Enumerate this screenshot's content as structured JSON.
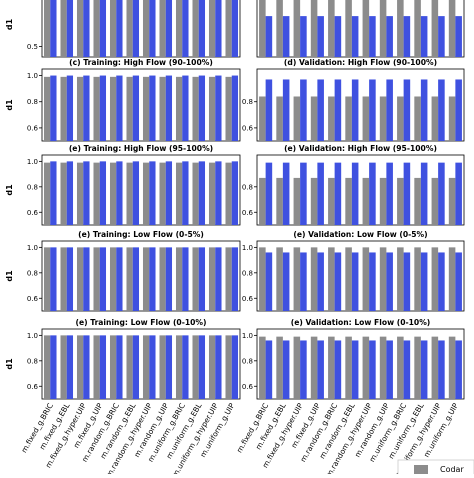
{
  "chart_data": {
    "type": "bar",
    "legend": {
      "entries": [
        "Codar"
      ],
      "placement": "bottom-right",
      "colors": {
        "Codar": "#8c8c8c"
      }
    },
    "series_colors": [
      "#8c8c8c",
      "#3f51e0"
    ],
    "categories": [
      "m.fixed_g.BRIC",
      "m.fixed_g.EBL",
      "m.fixed_g.hyper.UIP",
      "m.fixed_g.UIP",
      "m.random_g.BRIC",
      "m.random_g.EBL",
      "m.random_g.hyper.UIP",
      "m.random_g.UIP",
      "m.uniform_g.BRIC",
      "m.uniform_g.EBL",
      "m.uniform_g.hyper.UIP",
      "m.uniform_g.UIP"
    ],
    "panels": [
      {
        "title": "",
        "ylabel": "d1",
        "yticks": [
          "0.5"
        ],
        "ylim": [
          0.4,
          1.02
        ],
        "grey": [
          1,
          1,
          1,
          1,
          1,
          1,
          1,
          1,
          1,
          1,
          1,
          1
        ],
        "blue": [
          1,
          1,
          1,
          1,
          1,
          1,
          1,
          1,
          1,
          1,
          1,
          1
        ]
      },
      {
        "title": "",
        "ylabel": "",
        "yticks": [],
        "ylim": [
          0.4,
          1.02
        ],
        "grey": [
          0.98,
          0.98,
          0.98,
          0.98,
          0.98,
          0.98,
          0.98,
          0.98,
          0.98,
          0.98,
          0.98,
          0.98
        ],
        "blue": [
          0.79,
          0.79,
          0.79,
          0.79,
          0.79,
          0.79,
          0.79,
          0.79,
          0.79,
          0.79,
          0.79,
          0.79
        ]
      },
      {
        "title": "(c) Training: High Flow (90-100%)",
        "ylabel": "d1",
        "yticks": [
          "1.0",
          "0.8",
          "0.6"
        ],
        "ylim": [
          0.5,
          1.05
        ],
        "grey": [
          0.99,
          0.99,
          0.99,
          0.99,
          0.99,
          0.99,
          0.99,
          0.99,
          0.99,
          0.99,
          0.99,
          0.99
        ],
        "blue": [
          1,
          1,
          1,
          1,
          1,
          1,
          1,
          1,
          1,
          1,
          1,
          1
        ]
      },
      {
        "title": "(d) Validation: High Flow (90-100%)",
        "ylabel": "",
        "yticks": [
          "0.8",
          "0.6"
        ],
        "ylim": [
          0.5,
          1.05
        ],
        "grey": [
          0.84,
          0.84,
          0.84,
          0.84,
          0.84,
          0.84,
          0.84,
          0.84,
          0.84,
          0.84,
          0.84,
          0.84
        ],
        "blue": [
          0.97,
          0.97,
          0.97,
          0.97,
          0.97,
          0.97,
          0.97,
          0.97,
          0.97,
          0.97,
          0.97,
          0.97
        ]
      },
      {
        "title": "(e) Training: High Flow (95-100%)",
        "ylabel": "d1",
        "yticks": [
          "1.0",
          "0.8",
          "0.6"
        ],
        "ylim": [
          0.5,
          1.05
        ],
        "grey": [
          0.99,
          0.99,
          0.99,
          0.99,
          0.99,
          0.99,
          0.99,
          0.99,
          0.99,
          0.99,
          0.99,
          0.99
        ],
        "blue": [
          1,
          1,
          1,
          1,
          1,
          1,
          1,
          1,
          1,
          1,
          1,
          1
        ]
      },
      {
        "title": "(e) Validation: High Flow (95-100%)",
        "ylabel": "",
        "yticks": [
          "0.8",
          "0.6"
        ],
        "ylim": [
          0.5,
          1.05
        ],
        "grey": [
          0.87,
          0.87,
          0.87,
          0.87,
          0.87,
          0.87,
          0.87,
          0.87,
          0.87,
          0.87,
          0.87,
          0.87
        ],
        "blue": [
          0.99,
          0.99,
          0.99,
          0.99,
          0.99,
          0.99,
          0.99,
          0.99,
          0.99,
          0.99,
          0.99,
          0.99
        ]
      },
      {
        "title": "(e) Training: Low Flow (0-5%)",
        "ylabel": "d1",
        "yticks": [
          "1.0",
          "0.8",
          "0.6"
        ],
        "ylim": [
          0.5,
          1.05
        ],
        "grey": [
          1,
          1,
          1,
          1,
          1,
          1,
          1,
          1,
          1,
          1,
          1,
          1
        ],
        "blue": [
          1,
          1,
          1,
          1,
          1,
          1,
          1,
          1,
          1,
          1,
          1,
          1
        ]
      },
      {
        "title": "(e) Validation: Low Flow (0-5%)",
        "ylabel": "",
        "yticks": [
          "1.0",
          "0.8",
          "0.6"
        ],
        "ylim": [
          0.5,
          1.05
        ],
        "grey": [
          1,
          1,
          1,
          1,
          1,
          1,
          1,
          1,
          1,
          1,
          1,
          1
        ],
        "blue": [
          0.96,
          0.96,
          0.96,
          0.96,
          0.96,
          0.96,
          0.96,
          0.96,
          0.96,
          0.96,
          0.96,
          0.96
        ]
      },
      {
        "title": "(e) Training: Low Flow (0-10%)",
        "ylabel": "d1",
        "yticks": [
          "1.0",
          "0.8",
          "0.6"
        ],
        "ylim": [
          0.5,
          1.05
        ],
        "grey": [
          1,
          1,
          1,
          1,
          1,
          1,
          1,
          1,
          1,
          1,
          1,
          1
        ],
        "blue": [
          1,
          1,
          1,
          1,
          1,
          1,
          1,
          1,
          1,
          1,
          1,
          1
        ]
      },
      {
        "title": "(e) Validation: Low Flow (0-10%)",
        "ylabel": "",
        "yticks": [
          "1.0",
          "0.8",
          "0.6"
        ],
        "ylim": [
          0.5,
          1.05
        ],
        "grey": [
          0.99,
          0.99,
          0.99,
          0.99,
          0.99,
          0.99,
          0.99,
          0.99,
          0.99,
          0.99,
          0.99,
          0.99
        ],
        "blue": [
          0.96,
          0.96,
          0.96,
          0.96,
          0.96,
          0.96,
          0.96,
          0.96,
          0.96,
          0.96,
          0.96,
          0.96
        ]
      }
    ]
  }
}
